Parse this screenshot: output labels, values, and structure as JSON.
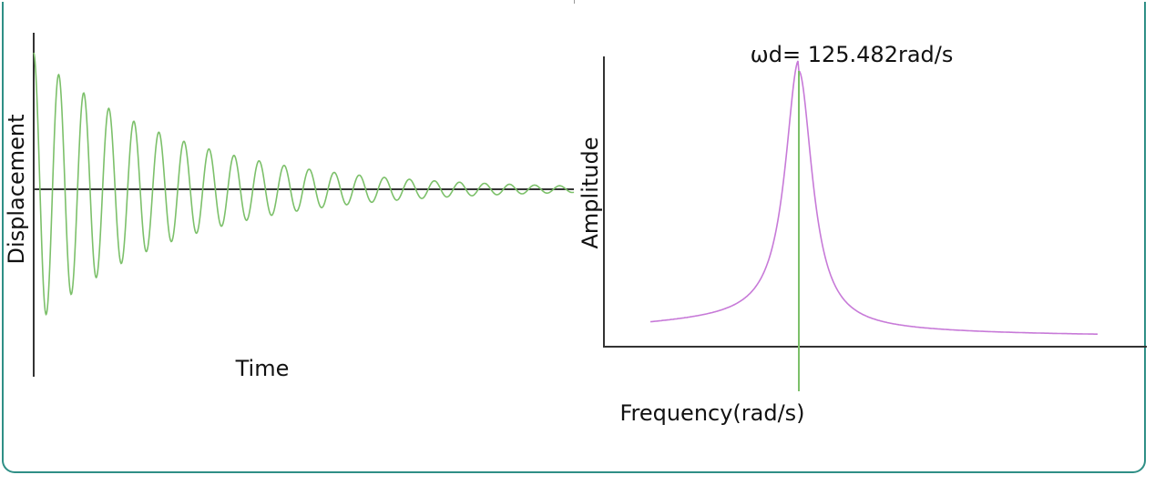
{
  "colors": {
    "panel_border": "#2f8f86",
    "axis": "#333333",
    "time_signal": "#7cc06a",
    "spectrum": "#c77ad8",
    "peak_marker": "#7cc06a"
  },
  "chart_data": [
    {
      "type": "line",
      "name": "time-domain",
      "xlabel": "Time",
      "ylabel": "Displacement",
      "title": "",
      "grid": false,
      "signal": {
        "description_kind": "damped-sinusoid",
        "initial_amplitude": 1.0,
        "cycles_shown": 22,
        "decay_per_cycle": 0.84
      }
    },
    {
      "type": "line",
      "name": "frequency-spectrum",
      "title": "ωd= 125.482rad/s",
      "xlabel": "Frequency(rad/s)",
      "ylabel": "Amplitude",
      "grid": false,
      "peak_frequency": 125.482,
      "peak_unit": "rad/s"
    }
  ]
}
